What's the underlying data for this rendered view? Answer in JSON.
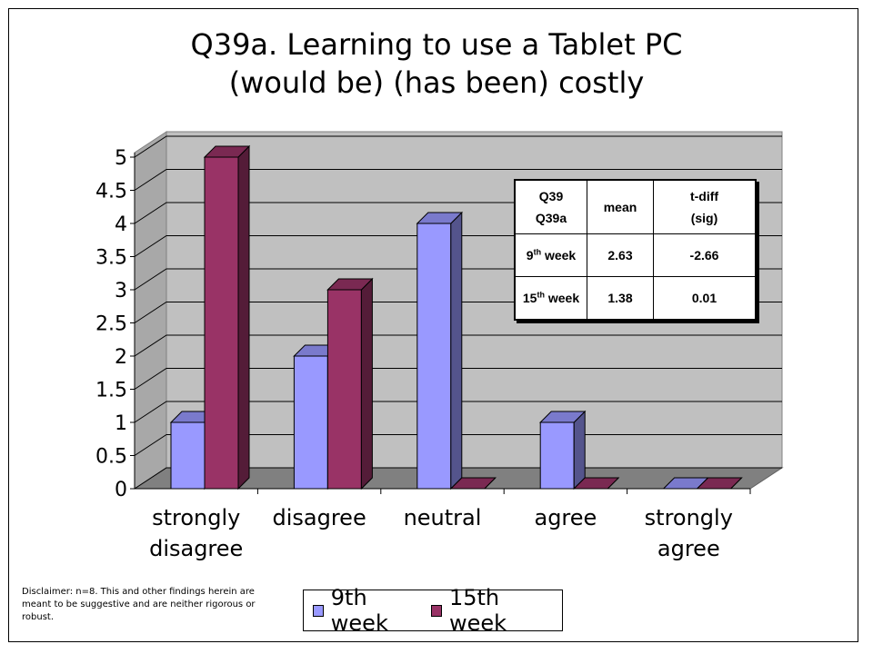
{
  "chart_data": {
    "type": "bar",
    "title": "Q39a. Learning to use a Tablet PC",
    "subtitle": "(would be) (has been) costly",
    "categories": [
      [
        "strongly",
        "disagree"
      ],
      [
        "disagree"
      ],
      [
        "neutral"
      ],
      [
        "agree"
      ],
      [
        "strongly",
        "agree"
      ]
    ],
    "series": [
      {
        "name": "9th week",
        "values": [
          1,
          2,
          4,
          1,
          0
        ],
        "color": "#9999ff"
      },
      {
        "name": "15th week",
        "values": [
          5,
          3,
          0,
          0,
          0
        ],
        "color": "#993366"
      }
    ],
    "ylim": [
      0,
      5
    ],
    "yticks": [
      "0",
      "0.5",
      "1",
      "1.5",
      "2",
      "2.5",
      "3",
      "3.5",
      "4",
      "4.5",
      "5"
    ],
    "grid": true,
    "legend": "bottom",
    "xlabel": "",
    "ylabel": ""
  },
  "stats_table": {
    "header": {
      "c1_line1": "Q39",
      "c1_line2": "Q39a",
      "c2": "mean",
      "c3_line1": "t-diff",
      "c3_line2": "(sig)"
    },
    "rows": [
      {
        "label_num": "9",
        "label_sup": "th",
        "label_rest": " week",
        "mean": "2.63",
        "tdiff": "-2.66"
      },
      {
        "label_num": "15",
        "label_sup": "th",
        "label_rest": " week",
        "mean": "1.38",
        "tdiff": "0.01"
      }
    ]
  },
  "legend": {
    "item1": "9th week",
    "item2": "15th week"
  },
  "disclaimer": "Disclaimer:  n=8.  This and other findings herein are meant to be suggestive and are neither rigorous or robust."
}
